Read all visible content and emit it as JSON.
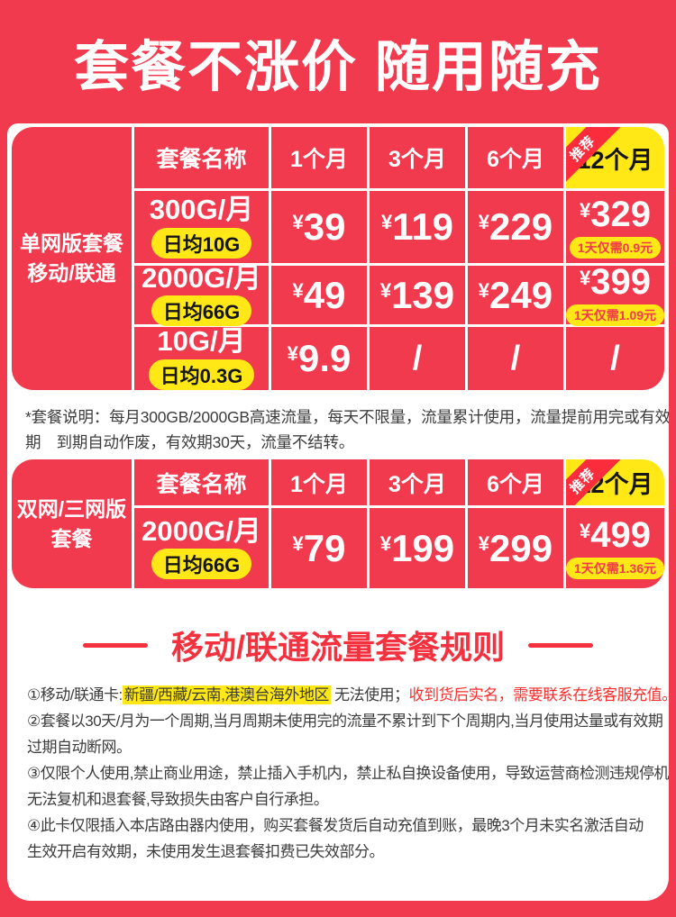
{
  "colors": {
    "red": "#f23a4f",
    "ribbon": "#fb2c3c",
    "yellow": "#ffe815",
    "title": "#f4313f",
    "warn": "#fe2b2b",
    "text": "#3c3c3c"
  },
  "banner": {
    "title": "套餐不涨价 随用随充"
  },
  "note_lines": [
    "*套餐说明：每月300GB/2000GB高速流量，每天不限量，流量累计使用，流量提前用完或有效",
    "期　到期自动作废，有效期30天，流量不结转。"
  ],
  "rules_title": "移动/联通流量套餐规则",
  "tables": [
    {
      "label_lines": [
        "单网版套餐",
        "移动/联通"
      ],
      "name_header": "套餐名称",
      "month_headers": [
        "1个月",
        "3个月",
        "6个月"
      ],
      "featured_header": "12个月",
      "badge": "推荐",
      "rows": [
        {
          "plan": "300G/月",
          "daily": "日均10G",
          "prices": [
            {
              "cur": "¥",
              "val": "39"
            },
            {
              "cur": "¥",
              "val": "119"
            },
            {
              "cur": "¥",
              "val": "229"
            }
          ],
          "featured": {
            "cur": "¥",
            "val": "329",
            "note": "1天仅需0.9元"
          }
        },
        {
          "plan": "2000G/月",
          "daily": "日均66G",
          "prices": [
            {
              "cur": "¥",
              "val": "49"
            },
            {
              "cur": "¥",
              "val": "139"
            },
            {
              "cur": "¥",
              "val": "249"
            }
          ],
          "featured": {
            "cur": "¥",
            "val": "399",
            "note": "1天仅需1.09元"
          }
        },
        {
          "plan": "10G/月",
          "daily": "日均0.3G",
          "prices": [
            {
              "cur": "¥",
              "val": "9.9"
            },
            {
              "val": "/"
            },
            {
              "val": "/"
            }
          ],
          "featured": {
            "val": "/"
          }
        }
      ]
    },
    {
      "label_lines": [
        "双网/三网版",
        "套餐"
      ],
      "name_header": "套餐名称",
      "month_headers": [
        "1个月",
        "3个月",
        "6个月"
      ],
      "featured_header": "12个月",
      "badge": "推荐",
      "rows": [
        {
          "plan": "2000G/月",
          "daily": "日均66G",
          "prices": [
            {
              "cur": "¥",
              "val": "79"
            },
            {
              "cur": "¥",
              "val": "199"
            },
            {
              "cur": "¥",
              "val": "299"
            }
          ],
          "featured": {
            "cur": "¥",
            "val": "499",
            "note": "1天仅需1.36元"
          }
        }
      ]
    }
  ],
  "rules": [
    {
      "parts": [
        {
          "text": "①移动/联通卡:",
          "style": "plain"
        },
        {
          "text": "新疆/西藏/云南,港澳台海外地区",
          "style": "highlight"
        },
        {
          "text": " 无法使用；",
          "style": "plain"
        },
        {
          "text": "收到货后实名，需要联系在线客服充值。",
          "style": "warn"
        }
      ]
    },
    {
      "parts": [
        {
          "text": "②套餐以30天/月为一个周期,当月周期未使用完的流量不累计到下个周期内,当月使用达量或有效期",
          "style": "plain"
        }
      ]
    },
    {
      "parts": [
        {
          "text": "过期自动断网。",
          "style": "plain"
        }
      ]
    },
    {
      "parts": [
        {
          "text": "③仅限个人使用,禁止商业用途，禁止插入手机内，禁止私自换设备使用，导致运营商检测违规停机,",
          "style": "plain"
        }
      ]
    },
    {
      "parts": [
        {
          "text": "无法复机和退套餐,导致损失由客户自行承担。",
          "style": "plain"
        }
      ]
    },
    {
      "parts": [
        {
          "text": "④此卡仅限插入本店路由器内使用，购买套餐发货后自动充值到账，最晚3个月未实名激活自动",
          "style": "plain"
        }
      ]
    },
    {
      "parts": [
        {
          "text": "生效开启有效期，未使用发生退套餐扣费已失效部分。",
          "style": "plain"
        }
      ]
    }
  ]
}
